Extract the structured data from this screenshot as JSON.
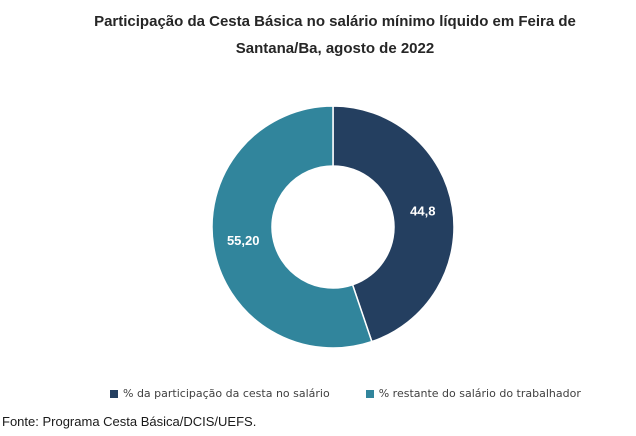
{
  "chart_data": {
    "type": "pie",
    "variant": "donut",
    "title": "Participação da Cesta Básica no salário mínimo líquido em Feira de Santana/Ba, agosto de 2022",
    "title_lines": [
      "Participação da Cesta Básica no salário mínimo líquido em Feira de",
      "Santana/Ba, agosto de 2022"
    ],
    "slices": [
      {
        "name": "% da participação da cesta no salário",
        "value": 44.8,
        "label": "44,8",
        "color": "#243f60"
      },
      {
        "name": "% restante do salário do trabalhador",
        "value": 55.2,
        "label": "55,20",
        "color": "#31859c"
      }
    ],
    "legend_position": "bottom"
  },
  "source": "Fonte: Programa Cesta Básica/DCIS/UEFS."
}
